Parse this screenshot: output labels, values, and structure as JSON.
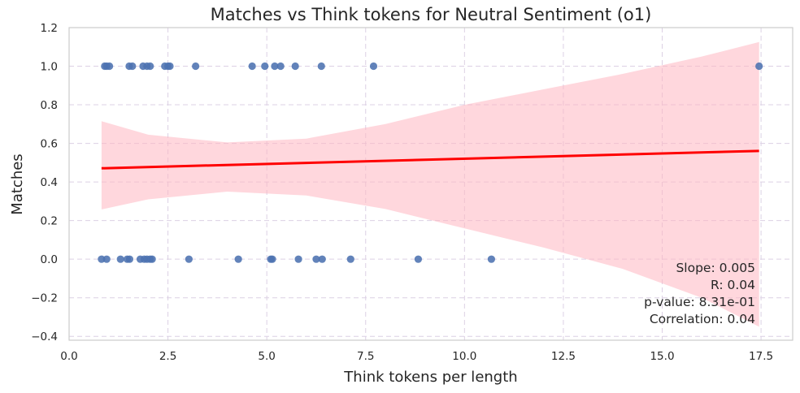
{
  "chart_data": {
    "type": "scatter",
    "title": "Matches vs Think tokens for Neutral Sentiment (o1)",
    "xlabel": "Think tokens per length",
    "ylabel": "Matches",
    "xlim": [
      0,
      18.3
    ],
    "ylim": [
      -0.42,
      1.2
    ],
    "x_ticks": [
      0,
      2.5,
      5,
      7.5,
      10,
      12.5,
      15,
      17.5
    ],
    "x_tick_labels": [
      "0.0",
      "2.5",
      "5.0",
      "7.5",
      "10.0",
      "12.5",
      "15.0",
      "17.5"
    ],
    "y_ticks": [
      -0.4,
      -0.2,
      0,
      0.2,
      0.4,
      0.6,
      0.8,
      1.0,
      1.2
    ],
    "y_tick_labels": [
      "−0.4",
      "−0.2",
      "0.0",
      "0.2",
      "0.4",
      "0.6",
      "0.8",
      "1.0",
      "1.2"
    ],
    "grid": true,
    "colors": {
      "points": "#4c72b0",
      "regression_line": "#ff0000",
      "confidence_band": "#ffb6c1",
      "grid": "#dcd0e4"
    },
    "points": [
      {
        "x": 0.9,
        "y": 1
      },
      {
        "x": 0.95,
        "y": 1
      },
      {
        "x": 1.02,
        "y": 1
      },
      {
        "x": 1.52,
        "y": 1
      },
      {
        "x": 1.6,
        "y": 1
      },
      {
        "x": 1.87,
        "y": 1
      },
      {
        "x": 1.97,
        "y": 1
      },
      {
        "x": 2.05,
        "y": 1
      },
      {
        "x": 2.42,
        "y": 1
      },
      {
        "x": 2.5,
        "y": 1
      },
      {
        "x": 2.55,
        "y": 1
      },
      {
        "x": 3.2,
        "y": 1
      },
      {
        "x": 4.63,
        "y": 1
      },
      {
        "x": 4.95,
        "y": 1
      },
      {
        "x": 5.2,
        "y": 1
      },
      {
        "x": 5.35,
        "y": 1
      },
      {
        "x": 5.72,
        "y": 1
      },
      {
        "x": 6.38,
        "y": 1
      },
      {
        "x": 7.7,
        "y": 1
      },
      {
        "x": 17.45,
        "y": 1
      },
      {
        "x": 0.82,
        "y": 0
      },
      {
        "x": 0.95,
        "y": 0
      },
      {
        "x": 1.3,
        "y": 0
      },
      {
        "x": 1.47,
        "y": 0
      },
      {
        "x": 1.53,
        "y": 0
      },
      {
        "x": 1.8,
        "y": 0
      },
      {
        "x": 1.9,
        "y": 0
      },
      {
        "x": 1.97,
        "y": 0
      },
      {
        "x": 2.05,
        "y": 0
      },
      {
        "x": 2.1,
        "y": 0
      },
      {
        "x": 3.03,
        "y": 0
      },
      {
        "x": 4.28,
        "y": 0
      },
      {
        "x": 5.1,
        "y": 0
      },
      {
        "x": 5.14,
        "y": 0
      },
      {
        "x": 5.8,
        "y": 0
      },
      {
        "x": 6.25,
        "y": 0
      },
      {
        "x": 6.4,
        "y": 0
      },
      {
        "x": 7.12,
        "y": 0
      },
      {
        "x": 8.83,
        "y": 0
      },
      {
        "x": 10.68,
        "y": 0
      }
    ],
    "regression_line": {
      "x": [
        0.82,
        17.45
      ],
      "y": [
        0.471,
        0.561
      ]
    },
    "confidence_band": {
      "x": [
        0.82,
        2,
        4,
        6,
        8,
        10,
        12,
        14,
        16,
        17.45
      ],
      "upper": [
        0.715,
        0.645,
        0.605,
        0.625,
        0.7,
        0.8,
        0.88,
        0.96,
        1.05,
        1.125
      ],
      "lower": [
        0.258,
        0.31,
        0.35,
        0.33,
        0.26,
        0.16,
        0.06,
        -0.05,
        -0.2,
        -0.35
      ]
    },
    "stats": {
      "slope": "Slope: 0.005",
      "r": "R: 0.04",
      "p_value": "p-value: 8.31e-01",
      "correlation": "Correlation: 0.04"
    }
  }
}
